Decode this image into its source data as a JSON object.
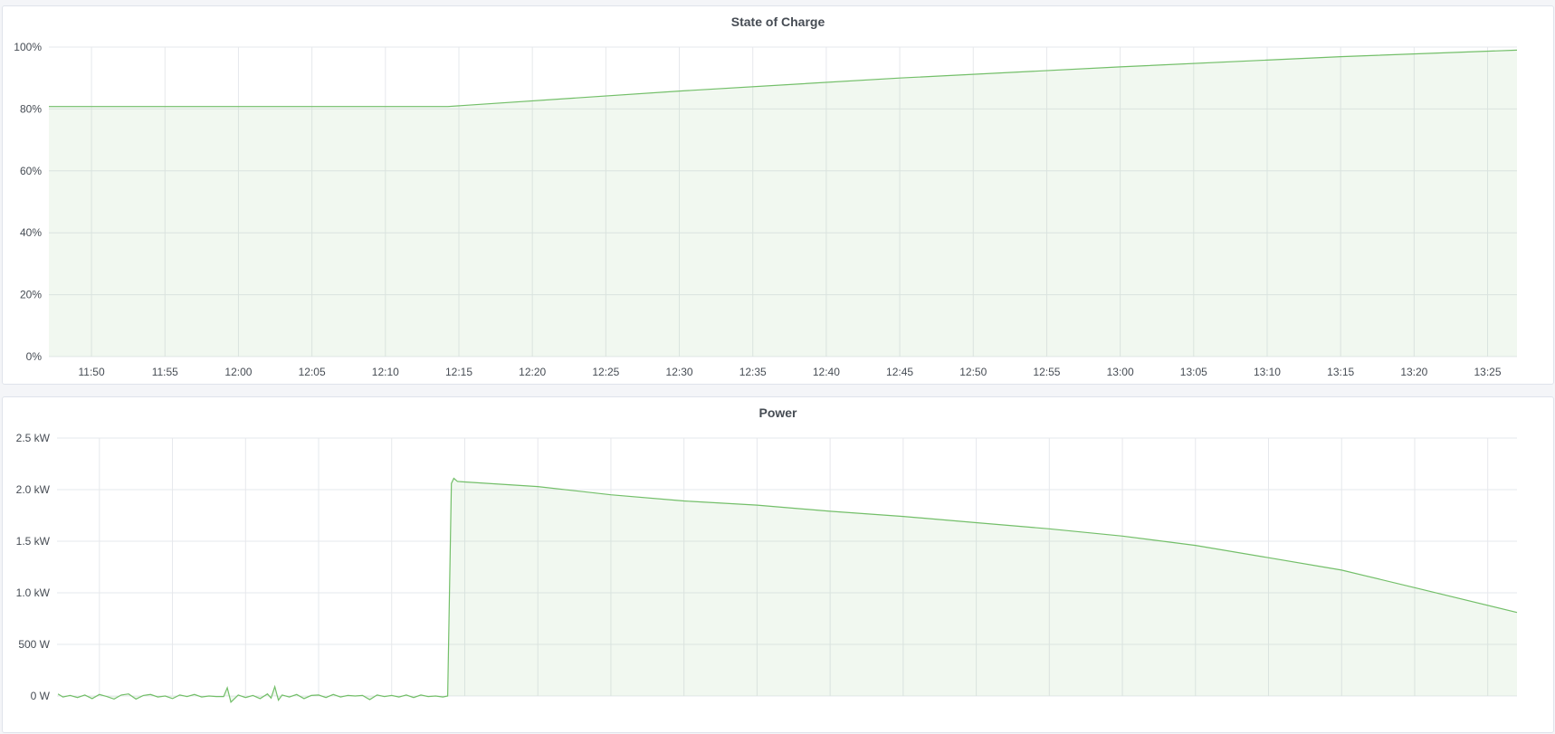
{
  "colors": {
    "line": "#73bf69",
    "fill": "rgba(115,191,105,0.1)",
    "grid": "#e6e8ec",
    "background": "#f4f5f8"
  },
  "chart_data": [
    {
      "type": "area",
      "title": "State of Charge",
      "xlim": [
        "11:47:06",
        "13:27:00"
      ],
      "ylim": [
        0,
        100
      ],
      "y_unit": "%",
      "grid": true,
      "x_ticks": [
        "11:50",
        "11:55",
        "12:00",
        "12:05",
        "12:10",
        "12:15",
        "12:20",
        "12:25",
        "12:30",
        "12:35",
        "12:40",
        "12:45",
        "12:50",
        "12:55",
        "13:00",
        "13:05",
        "13:10",
        "13:15",
        "13:20",
        "13:25"
      ],
      "y_ticks": [
        {
          "value": 0,
          "label": "0%"
        },
        {
          "value": 20,
          "label": "20%"
        },
        {
          "value": 40,
          "label": "40%"
        },
        {
          "value": 60,
          "label": "60%"
        },
        {
          "value": 80,
          "label": "80%"
        },
        {
          "value": 100,
          "label": "100%"
        }
      ],
      "series": [
        {
          "points": [
            [
              "11:47:06",
              80.8
            ],
            [
              "12:14:15",
              80.8
            ],
            [
              "12:30:00",
              85.8
            ],
            [
              "12:45:00",
              90.0
            ],
            [
              "13:00:00",
              93.6
            ],
            [
              "13:15:00",
              96.9
            ],
            [
              "13:27:00",
              99.0
            ]
          ]
        }
      ]
    },
    {
      "type": "area",
      "title": "Power",
      "xlim": [
        "11:47:06",
        "13:27:00"
      ],
      "ylim": [
        0,
        2500
      ],
      "y_unit": "W",
      "grid": true,
      "x_ticks": [
        "11:50",
        "11:55",
        "12:00",
        "12:05",
        "12:10",
        "12:15",
        "12:20",
        "12:25",
        "12:30",
        "12:35",
        "12:40",
        "12:45",
        "12:50",
        "12:55",
        "13:00",
        "13:05",
        "13:10",
        "13:15",
        "13:20",
        "13:25"
      ],
      "y_ticks": [
        {
          "value": 0,
          "label": "0 W"
        },
        {
          "value": 500,
          "label": "500 W"
        },
        {
          "value": 1000,
          "label": "1.0 kW"
        },
        {
          "value": 1500,
          "label": "1.5 kW"
        },
        {
          "value": 2000,
          "label": "2.0 kW"
        },
        {
          "value": 2500,
          "label": "2.5 kW"
        }
      ],
      "series": [
        {
          "points": [
            [
              "11:47:10",
              20
            ],
            [
              "11:47:30",
              -10
            ],
            [
              "11:48:00",
              5
            ],
            [
              "11:48:30",
              -15
            ],
            [
              "11:49:00",
              10
            ],
            [
              "11:49:30",
              -25
            ],
            [
              "11:50:00",
              15
            ],
            [
              "11:50:30",
              -5
            ],
            [
              "11:51:00",
              -30
            ],
            [
              "11:51:30",
              10
            ],
            [
              "11:52:00",
              20
            ],
            [
              "11:52:30",
              -30
            ],
            [
              "11:53:00",
              5
            ],
            [
              "11:53:30",
              15
            ],
            [
              "11:54:00",
              -10
            ],
            [
              "11:54:30",
              0
            ],
            [
              "11:55:00",
              -25
            ],
            [
              "11:55:30",
              10
            ],
            [
              "11:56:00",
              -5
            ],
            [
              "11:56:30",
              15
            ],
            [
              "11:57:00",
              -10
            ],
            [
              "11:57:30",
              0
            ],
            [
              "11:58:00",
              -5
            ],
            [
              "11:58:30",
              -5
            ],
            [
              "11:58:45",
              80
            ],
            [
              "11:59:00",
              -60
            ],
            [
              "11:59:30",
              10
            ],
            [
              "12:00:00",
              -15
            ],
            [
              "12:00:30",
              5
            ],
            [
              "12:01:00",
              -25
            ],
            [
              "12:01:30",
              20
            ],
            [
              "12:01:45",
              -20
            ],
            [
              "12:02:00",
              90
            ],
            [
              "12:02:15",
              -40
            ],
            [
              "12:02:30",
              10
            ],
            [
              "12:03:00",
              -10
            ],
            [
              "12:03:30",
              15
            ],
            [
              "12:04:00",
              -25
            ],
            [
              "12:04:30",
              5
            ],
            [
              "12:05:00",
              10
            ],
            [
              "12:05:30",
              -15
            ],
            [
              "12:06:00",
              15
            ],
            [
              "12:06:30",
              -10
            ],
            [
              "12:07:00",
              5
            ],
            [
              "12:07:30",
              0
            ],
            [
              "12:08:00",
              5
            ],
            [
              "12:08:30",
              -35
            ],
            [
              "12:09:00",
              10
            ],
            [
              "12:09:30",
              -5
            ],
            [
              "12:10:00",
              5
            ],
            [
              "12:10:30",
              -10
            ],
            [
              "12:11:00",
              10
            ],
            [
              "12:11:30",
              -15
            ],
            [
              "12:12:00",
              10
            ],
            [
              "12:12:30",
              -5
            ],
            [
              "12:13:00",
              0
            ],
            [
              "12:13:30",
              -10
            ],
            [
              "12:13:50",
              0
            ],
            [
              "12:14:05",
              2060
            ],
            [
              "12:14:15",
              2110
            ],
            [
              "12:14:30",
              2080
            ],
            [
              "12:15:00",
              2075
            ],
            [
              "12:20:00",
              2030
            ],
            [
              "12:25:00",
              1950
            ],
            [
              "12:30:00",
              1890
            ],
            [
              "12:35:00",
              1850
            ],
            [
              "12:40:00",
              1790
            ],
            [
              "12:45:00",
              1740
            ],
            [
              "12:50:00",
              1680
            ],
            [
              "12:55:00",
              1620
            ],
            [
              "13:00:00",
              1550
            ],
            [
              "13:05:00",
              1460
            ],
            [
              "13:10:00",
              1340
            ],
            [
              "13:15:00",
              1220
            ],
            [
              "13:20:00",
              1050
            ],
            [
              "13:27:00",
              810
            ]
          ]
        }
      ]
    }
  ]
}
